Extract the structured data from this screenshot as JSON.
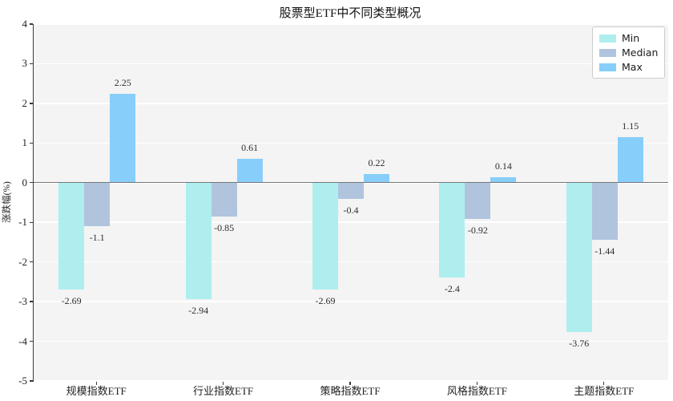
{
  "title": "股票型ETF中不同类型概况",
  "ylabel": "涨跌幅(%)",
  "legend": {
    "items": [
      {
        "label": "Min",
        "color": "#AFEEEE"
      },
      {
        "label": "Median",
        "color": "#B0C4DE"
      },
      {
        "label": "Max",
        "color": "#87CEFA"
      }
    ]
  },
  "chart_data": {
    "type": "bar",
    "title": "股票型ETF中不同类型概况",
    "xlabel": "",
    "ylabel": "涨跌幅(%)",
    "categories": [
      "规模指数ETF",
      "行业指数ETF",
      "策略指数ETF",
      "风格指数ETF",
      "主题指数ETF"
    ],
    "series": [
      {
        "name": "Min",
        "color": "#AFEEEE",
        "values": [
          -2.69,
          -2.94,
          -2.69,
          -2.4,
          -3.76
        ]
      },
      {
        "name": "Median",
        "color": "#B0C4DE",
        "values": [
          -1.1,
          -0.85,
          -0.4,
          -0.92,
          -1.44
        ]
      },
      {
        "name": "Max",
        "color": "#87CEFA",
        "values": [
          2.25,
          0.61,
          0.22,
          0.14,
          1.15
        ]
      }
    ],
    "ylim": [
      -5,
      4
    ],
    "yticks": [
      4,
      3,
      2,
      1,
      0,
      -1,
      -2,
      -3,
      -4,
      -5
    ],
    "grid": true,
    "grid_color": "#ffffff",
    "plot_background": "#f4f4f4",
    "zero_line": true,
    "legend_position": "upper right",
    "bar_value_labels": true
  }
}
